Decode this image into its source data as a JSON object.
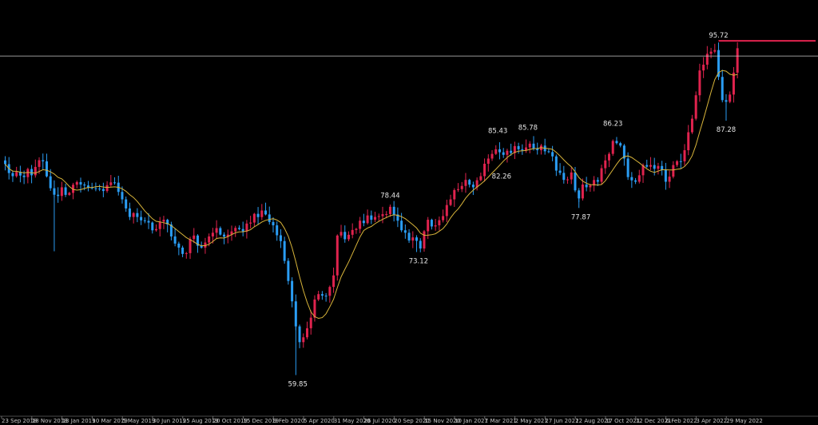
{
  "chart_data": {
    "type": "candlestick",
    "title": "",
    "xlabel": "",
    "ylabel": "",
    "ylim": [
      55.5,
      100.3
    ],
    "colors": {
      "background": "#000000",
      "up_candle": "#e0234e",
      "down_candle": "#2a9df4",
      "moving_average": "#d8b43a",
      "price_line": "#c8c8c8",
      "projection_line": "#e0234e",
      "text": "#c8c8c8"
    },
    "current_level": 95.72,
    "x_ticks": [
      "23 Sep 2018",
      "18 Nov 2018",
      "13 Jan 2019",
      "10 Mar 2019",
      "5 May 2019",
      "30 Jun 2019",
      "25 Aug 2019",
      "20 Oct 2019",
      "15 Dec 2019",
      "9 Feb 2020",
      "5 Apr 2020",
      "31 May 2020",
      "26 Jul 2020",
      "20 Sep 2020",
      "15 Nov 2020",
      "10 Jan 2021",
      "7 Mar 2021",
      "2 May 2021",
      "27 Jun 2021",
      "22 Aug 2021",
      "17 Oct 2021",
      "12 Dec 2021",
      "6 Feb 2022",
      "3 Apr 2022",
      "29 May 2022"
    ],
    "annotations": [
      {
        "text": "95.72",
        "week": 189.0,
        "value": 95.72,
        "place": "above"
      },
      {
        "text": "87.28",
        "week": 191.0,
        "value": 87.28,
        "place": "below"
      },
      {
        "text": "86.23",
        "week": 161.0,
        "value": 86.23,
        "place": "above"
      },
      {
        "text": "85.78",
        "week": 138.5,
        "value": 85.78,
        "place": "above"
      },
      {
        "text": "85.43",
        "week": 130.5,
        "value": 85.43,
        "place": "above"
      },
      {
        "text": "82.26",
        "week": 131.5,
        "value": 82.26,
        "place": "below"
      },
      {
        "text": "77.87",
        "week": 152.5,
        "value": 77.87,
        "place": "below"
      },
      {
        "text": "78.44",
        "week": 102.0,
        "value": 78.44,
        "place": "above"
      },
      {
        "text": "73.12",
        "week": 109.5,
        "value": 73.12,
        "place": "below"
      },
      {
        "text": "59.85",
        "week": 77.5,
        "value": 59.85,
        "place": "below"
      }
    ],
    "anchors": [
      [
        0,
        82.6
      ],
      [
        2,
        81.3
      ],
      [
        5,
        81.2
      ],
      [
        8,
        82.3
      ],
      [
        10,
        82.9
      ],
      [
        12,
        80.0
      ],
      [
        13,
        79.3
      ],
      [
        15,
        80.1
      ],
      [
        17,
        79.5
      ],
      [
        20,
        80.4
      ],
      [
        23,
        80.0
      ],
      [
        26,
        79.7
      ],
      [
        29,
        80.6
      ],
      [
        31,
        78.8
      ],
      [
        33,
        76.9
      ],
      [
        35,
        76.9
      ],
      [
        38,
        76.3
      ],
      [
        40,
        75.6
      ],
      [
        42,
        76.6
      ],
      [
        44,
        74.8
      ],
      [
        46,
        73.6
      ],
      [
        48,
        73.0
      ],
      [
        50,
        74.9
      ],
      [
        52,
        73.6
      ],
      [
        54,
        74.8
      ],
      [
        56,
        75.7
      ],
      [
        59,
        75.0
      ],
      [
        62,
        75.6
      ],
      [
        65,
        76.3
      ],
      [
        68,
        77.6
      ],
      [
        71,
        76.0
      ],
      [
        73,
        74.3
      ],
      [
        75,
        70.0
      ],
      [
        77,
        65.1
      ],
      [
        78,
        63.4
      ],
      [
        80,
        64.9
      ],
      [
        82,
        68.0
      ],
      [
        85,
        68.4
      ],
      [
        87,
        70.6
      ],
      [
        88,
        74.9
      ],
      [
        90,
        74.5
      ],
      [
        92,
        75.5
      ],
      [
        94,
        76.5
      ],
      [
        97,
        76.6
      ],
      [
        100,
        77.2
      ],
      [
        102,
        78.0
      ],
      [
        104,
        76.5
      ],
      [
        106,
        75.2
      ],
      [
        108,
        74.7
      ],
      [
        110,
        73.5
      ],
      [
        112,
        76.6
      ],
      [
        114,
        76.0
      ],
      [
        116,
        77.0
      ],
      [
        118,
        78.8
      ],
      [
        120,
        79.9
      ],
      [
        122,
        80.9
      ],
      [
        124,
        80.1
      ],
      [
        126,
        81.3
      ],
      [
        128,
        83.2
      ],
      [
        130,
        84.2
      ],
      [
        132,
        83.6
      ],
      [
        134,
        83.8
      ],
      [
        136,
        84.2
      ],
      [
        138,
        84.4
      ],
      [
        140,
        84.3
      ],
      [
        142,
        84.6
      ],
      [
        144,
        83.9
      ],
      [
        146,
        81.9
      ],
      [
        148,
        80.9
      ],
      [
        150,
        81.7
      ],
      [
        152,
        78.9
      ],
      [
        153,
        80.4
      ],
      [
        155,
        80.3
      ],
      [
        157,
        80.7
      ],
      [
        159,
        83.0
      ],
      [
        161,
        85.1
      ],
      [
        163,
        84.6
      ],
      [
        165,
        81.2
      ],
      [
        167,
        80.7
      ],
      [
        169,
        82.5
      ],
      [
        171,
        82.5
      ],
      [
        173,
        82.4
      ],
      [
        175,
        80.7
      ],
      [
        177,
        82.5
      ],
      [
        179,
        82.9
      ],
      [
        180,
        84.1
      ],
      [
        182,
        87.5
      ],
      [
        184,
        92.7
      ],
      [
        186,
        94.5
      ],
      [
        188,
        94.9
      ],
      [
        190,
        89.5
      ],
      [
        192,
        90.1
      ],
      [
        194,
        95.1
      ]
    ],
    "volatility": 0.85,
    "seed": 7
  }
}
